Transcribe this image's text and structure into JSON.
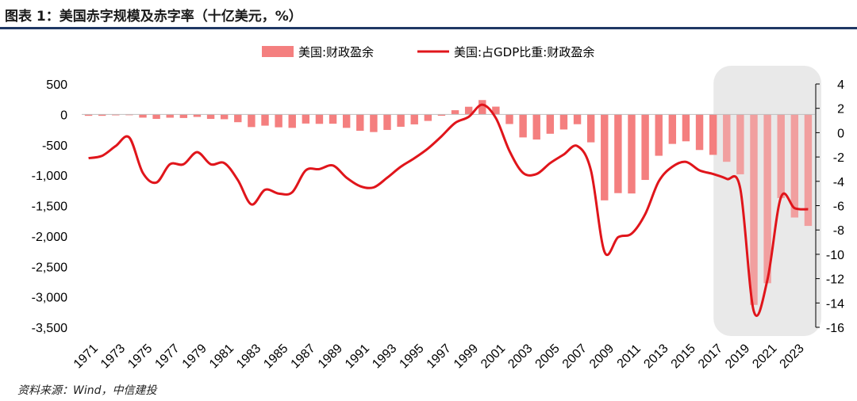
{
  "title": "图表 1：美国赤字规模及赤字率（十亿美元，%）",
  "source": "资料来源：Wind，中信建投",
  "chart_data": {
    "type": "bar+line",
    "legend": [
      "美国:财政盈余",
      "美国:占GDP比重:财政盈余"
    ],
    "colors": {
      "bar": "#f47f7f",
      "line": "#e0151b",
      "highlight_bg": "#e9e9e9",
      "rule": "#1f3864"
    },
    "years": [
      1971,
      1972,
      1973,
      1974,
      1975,
      1976,
      1977,
      1978,
      1979,
      1980,
      1981,
      1982,
      1983,
      1984,
      1985,
      1986,
      1987,
      1988,
      1989,
      1990,
      1991,
      1992,
      1993,
      1994,
      1995,
      1996,
      1997,
      1998,
      1999,
      2000,
      2001,
      2002,
      2003,
      2004,
      2005,
      2006,
      2007,
      2008,
      2009,
      2010,
      2011,
      2012,
      2013,
      2014,
      2015,
      2016,
      2017,
      2018,
      2019,
      2020,
      2021,
      2022,
      2023,
      2024
    ],
    "x_tick_labels": [
      "1971",
      "1973",
      "1975",
      "1977",
      "1979",
      "1981",
      "1983",
      "1985",
      "1987",
      "1989",
      "1991",
      "1993",
      "1995",
      "1997",
      "1999",
      "2001",
      "2003",
      "2005",
      "2007",
      "2009",
      "2011",
      "2013",
      "2015",
      "2017",
      "2019",
      "2021",
      "2023"
    ],
    "series": [
      {
        "name": "美国:财政盈余",
        "axis": "left",
        "values": [
          -23,
          -23,
          -15,
          -6,
          -53,
          -74,
          -54,
          -59,
          -41,
          -74,
          -79,
          -128,
          -208,
          -185,
          -212,
          -221,
          -150,
          -155,
          -153,
          -221,
          -269,
          -290,
          -255,
          -203,
          -164,
          -107,
          -22,
          69,
          126,
          236,
          128,
          -158,
          -378,
          -413,
          -318,
          -248,
          -161,
          -459,
          -1413,
          -1294,
          -1300,
          -1077,
          -680,
          -485,
          -442,
          -585,
          -665,
          -779,
          -984,
          -3132,
          -2775,
          -1375,
          -1695,
          -1833
        ]
      },
      {
        "name": "美国:占GDP比重:财政盈余",
        "axis": "right",
        "values": [
          -2.1,
          -1.9,
          -1.1,
          -0.4,
          -3.3,
          -4.1,
          -2.6,
          -2.6,
          -1.6,
          -2.6,
          -2.5,
          -3.9,
          -5.9,
          -4.7,
          -5.0,
          -4.9,
          -3.1,
          -3.0,
          -2.7,
          -3.7,
          -4.4,
          -4.5,
          -3.7,
          -2.8,
          -2.1,
          -1.3,
          -0.3,
          0.8,
          1.3,
          2.3,
          1.2,
          -1.5,
          -3.3,
          -3.4,
          -2.5,
          -1.8,
          -1.1,
          -3.1,
          -9.8,
          -8.6,
          -8.3,
          -6.7,
          -4.0,
          -2.8,
          -2.4,
          -3.1,
          -3.4,
          -3.8,
          -4.6,
          -14.7,
          -12.1,
          -5.3,
          -6.2,
          -6.3
        ]
      }
    ],
    "left_axis": {
      "min": -3500,
      "max": 500,
      "step": 500,
      "tick_labels": [
        "500",
        "0",
        "-500",
        "-1,000",
        "-1,500",
        "-2,000",
        "-2,500",
        "-3,000",
        "-3,500"
      ]
    },
    "right_axis": {
      "min": -16,
      "max": 4,
      "step": 2,
      "tick_labels": [
        "4",
        "2",
        "0",
        "-2",
        "-4",
        "-6",
        "-8",
        "-10",
        "-12",
        "-14",
        "-16"
      ]
    },
    "highlight_years": [
      2018,
      2024
    ]
  }
}
